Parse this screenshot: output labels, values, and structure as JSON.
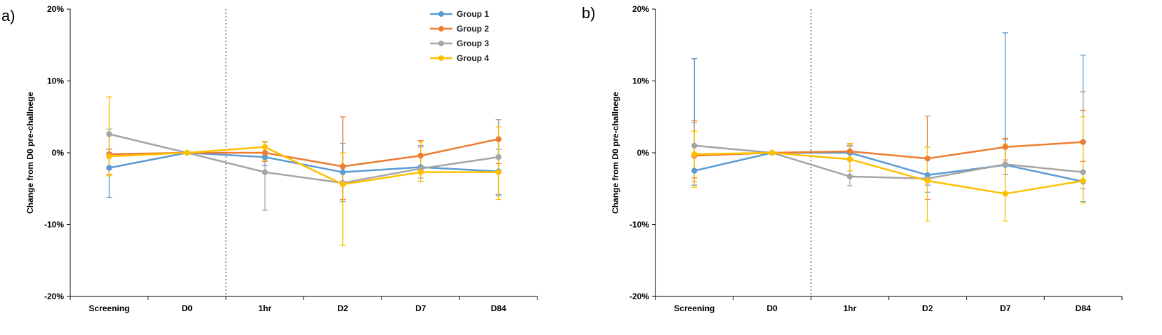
{
  "chart_data": [
    {
      "type": "line",
      "panel_label": "a)",
      "ylabel": "Change from D0 pre-challnege",
      "categories": [
        "Screening",
        "D0",
        "1hr",
        "D2",
        "D7",
        "D84"
      ],
      "ylim": [
        -20,
        20
      ],
      "yticks": [
        -20,
        -10,
        0,
        10,
        20
      ],
      "ytick_labels": [
        "-20%",
        "-10%",
        "0%",
        "10%",
        "20%"
      ],
      "reference_line": "D0",
      "legend": [
        "Group 1",
        "Group 2",
        "Group 3",
        "Group 4"
      ],
      "legend_position": "top-right",
      "series": [
        {
          "name": "Group 1",
          "color": "#5B9BD5",
          "values": [
            -2.1,
            0,
            -0.6,
            -2.7,
            -2.0,
            -2.6
          ],
          "err_low": [
            -6.2,
            0,
            -1.8,
            -6.5,
            -4.0,
            -6.0
          ],
          "err_high": [
            0.5,
            0,
            0.8,
            1.3,
            1.0,
            0.5
          ]
        },
        {
          "name": "Group 2",
          "color": "#ED7D31",
          "values": [
            -0.2,
            0,
            0.0,
            -1.9,
            -0.4,
            1.9
          ],
          "err_low": [
            -3.0,
            0,
            -1.2,
            -6.5,
            -2.5,
            -1.5
          ],
          "err_high": [
            0.5,
            0,
            1.5,
            5.0,
            1.7,
            4.6
          ]
        },
        {
          "name": "Group 3",
          "color": "#A5A5A5",
          "values": [
            2.6,
            0,
            -2.7,
            -4.2,
            -2.2,
            -0.6
          ],
          "err_low": [
            0.0,
            0,
            -8.0,
            -6.8,
            -3.5,
            -5.8
          ],
          "err_high": [
            3.3,
            0,
            1.5,
            1.3,
            0.8,
            4.6
          ]
        },
        {
          "name": "Group 4",
          "color": "#FFC000",
          "values": [
            -0.5,
            0,
            0.8,
            -4.4,
            -2.7,
            -2.7
          ],
          "err_low": [
            -3.2,
            0,
            -1.0,
            -12.9,
            -4.0,
            -6.5
          ],
          "err_high": [
            7.8,
            0,
            1.6,
            0.0,
            1.5,
            3.6
          ]
        }
      ]
    },
    {
      "type": "line",
      "panel_label": "b)",
      "ylabel": "Change from D0 pre-challnege",
      "categories": [
        "Screening",
        "D0",
        "1hr",
        "D2",
        "D7",
        "D84"
      ],
      "ylim": [
        -20,
        20
      ],
      "yticks": [
        -20,
        -10,
        0,
        10,
        20
      ],
      "ytick_labels": [
        "-20%",
        "-10%",
        "0%",
        "10%",
        "20%"
      ],
      "reference_line": "D0",
      "series": [
        {
          "name": "Group 1",
          "color": "#5B9BD5",
          "values": [
            -2.5,
            0,
            0.0,
            -3.1,
            -1.7,
            -4.0
          ],
          "err_low": [
            -4.5,
            0,
            -1.0,
            -4.5,
            -3.0,
            -6.8
          ],
          "err_high": [
            13.1,
            0,
            0.9,
            0.8,
            16.7,
            13.6
          ]
        },
        {
          "name": "Group 2",
          "color": "#ED7D31",
          "values": [
            -0.4,
            0,
            0.2,
            -0.8,
            0.8,
            1.5
          ],
          "err_low": [
            -3.5,
            0,
            -0.8,
            -6.5,
            -1.0,
            -1.2
          ],
          "err_high": [
            4.5,
            0,
            1.2,
            5.1,
            2.0,
            5.9
          ]
        },
        {
          "name": "Group 3",
          "color": "#A5A5A5",
          "values": [
            1.0,
            0,
            -3.3,
            -3.6,
            -1.6,
            -2.7
          ],
          "err_low": [
            -4.0,
            0,
            -4.6,
            -5.5,
            -3.0,
            -5.0
          ],
          "err_high": [
            4.2,
            0,
            1.0,
            0.8,
            1.8,
            8.5
          ]
        },
        {
          "name": "Group 4",
          "color": "#FFC000",
          "values": [
            -0.2,
            0,
            -0.9,
            -3.9,
            -5.7,
            -3.9
          ],
          "err_low": [
            -4.8,
            0,
            -2.5,
            -9.5,
            -9.5,
            -7.0
          ],
          "err_high": [
            3.0,
            0,
            1.3,
            0.8,
            1.2,
            5.0
          ]
        }
      ]
    }
  ]
}
